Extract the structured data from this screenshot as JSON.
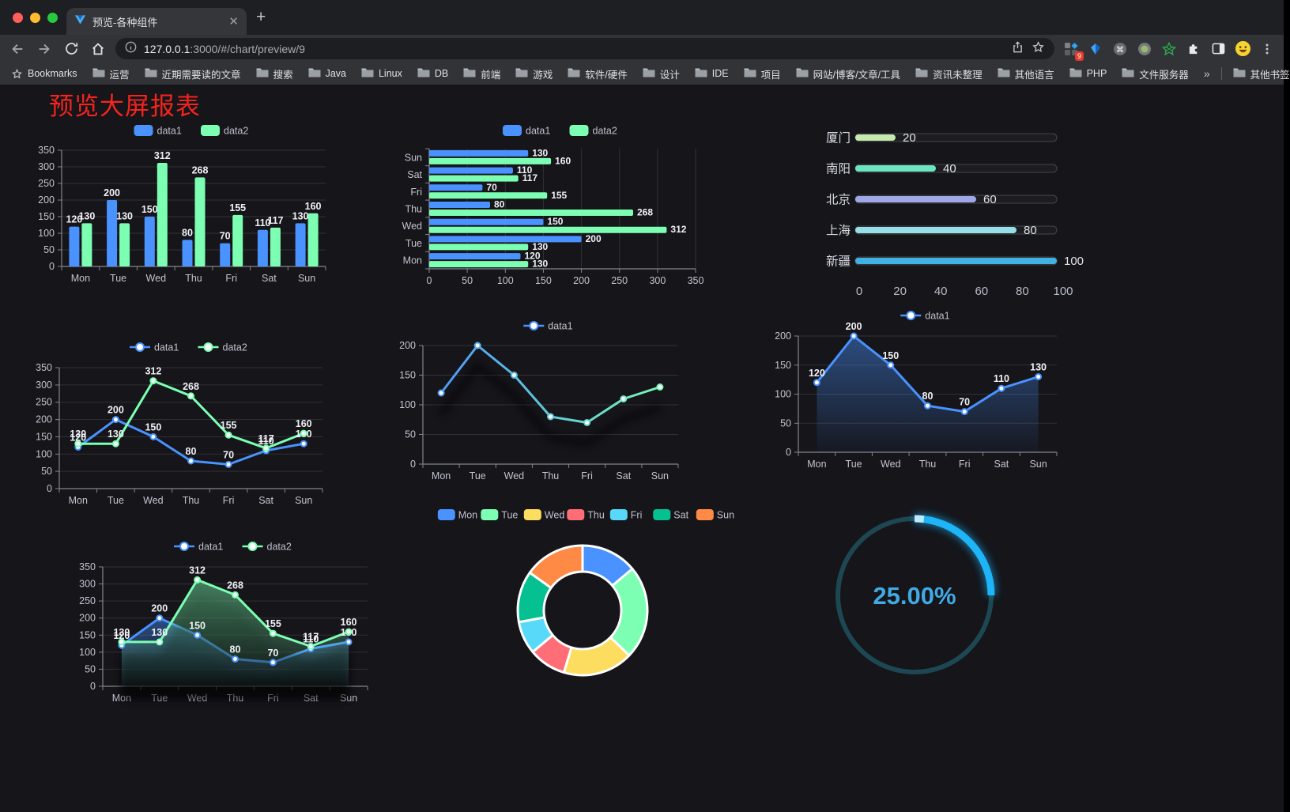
{
  "browser": {
    "tab": {
      "title": "预览-各种组件",
      "favicon": "vue-logo-icon",
      "close": "✕"
    },
    "new_tab": "+",
    "url": {
      "host": "127.0.0.1",
      "rest": ":3000/#/chart/preview/9"
    },
    "nav_icons": [
      "back-icon",
      "forward-icon",
      "reload-icon",
      "home-icon"
    ],
    "url_icons": [
      "site-info-icon",
      "share-icon",
      "bookmark-star-icon"
    ],
    "extensions": [
      {
        "icon": "apps-grid-icon",
        "badge": "9"
      },
      {
        "icon": "kite-icon"
      },
      {
        "icon": "command-circle-icon"
      },
      {
        "icon": "record-circle-icon"
      },
      {
        "icon": "green-star-icon"
      },
      {
        "icon": "puzzle-icon"
      },
      {
        "icon": "sidebar-icon"
      },
      {
        "icon": "emoji-avatar-icon"
      },
      {
        "icon": "menu-kebab-icon"
      }
    ],
    "bookmarks_label": "Bookmarks",
    "bookmarks": [
      "运营",
      "近期需要读的文章",
      "搜索",
      "Java",
      "Linux",
      "DB",
      "前端",
      "游戏",
      "软件/硬件",
      "设计",
      "IDE",
      "项目",
      "网站/博客/文章/工具",
      "资讯未整理",
      "其他语言",
      "PHP",
      "文件服务器"
    ],
    "bookmarks_overflow": "»",
    "other_bookmarks": "其他书签"
  },
  "page": {
    "title": "预览大屏报表",
    "title_color": "#f5241d",
    "background": "#15151a"
  },
  "chart_data": [
    {
      "id": "c1",
      "type": "bar",
      "categories": [
        "Mon",
        "Tue",
        "Wed",
        "Thu",
        "Fri",
        "Sat",
        "Sun"
      ],
      "series": [
        {
          "name": "data1",
          "color": "#4992ff",
          "values": [
            120,
            200,
            150,
            80,
            70,
            110,
            130
          ]
        },
        {
          "name": "data2",
          "color": "#7cffb2",
          "values": [
            130,
            130,
            312,
            268,
            155,
            117,
            160
          ]
        }
      ],
      "ylim": [
        0,
        350
      ],
      "yticks": [
        0,
        50,
        100,
        150,
        200,
        250,
        300,
        350
      ],
      "value_labels": true,
      "legend_position": "top",
      "grid": true
    },
    {
      "id": "c2",
      "type": "bar-horizontal",
      "categories": [
        "Mon",
        "Tue",
        "Wed",
        "Thu",
        "Fri",
        "Sat",
        "Sun"
      ],
      "series": [
        {
          "name": "data1",
          "color": "#4992ff",
          "values": [
            120,
            200,
            150,
            80,
            70,
            110,
            130
          ]
        },
        {
          "name": "data2",
          "color": "#7cffb2",
          "values": [
            130,
            130,
            312,
            268,
            155,
            117,
            160
          ]
        }
      ],
      "xlim": [
        0,
        350
      ],
      "xticks": [
        0,
        50,
        100,
        150,
        200,
        250,
        300,
        350
      ],
      "value_labels": true,
      "legend_position": "top",
      "grid": true,
      "category_order": "Mon at bottom, Sun at top"
    },
    {
      "id": "c3",
      "type": "progress",
      "max": 100,
      "xticks": [
        0,
        20,
        40,
        60,
        80,
        100
      ],
      "items": [
        {
          "label": "厦门",
          "value": 20,
          "color": "#c4ebad"
        },
        {
          "label": "南阳",
          "value": 40,
          "color": "#6be6c1"
        },
        {
          "label": "北京",
          "value": 60,
          "color": "#a0a7e6"
        },
        {
          "label": "上海",
          "value": 80,
          "color": "#96dee8"
        },
        {
          "label": "新疆",
          "value": 100,
          "color": "#3fb1e3"
        }
      ]
    },
    {
      "id": "c4",
      "type": "line",
      "categories": [
        "Mon",
        "Tue",
        "Wed",
        "Thu",
        "Fri",
        "Sat",
        "Sun"
      ],
      "series": [
        {
          "name": "data1",
          "color": "#4992ff",
          "values": [
            120,
            200,
            150,
            80,
            70,
            110,
            130
          ]
        },
        {
          "name": "data2",
          "color": "#7cffb2",
          "values": [
            130,
            130,
            312,
            268,
            155,
            117,
            160
          ]
        }
      ],
      "ylim": [
        0,
        350
      ],
      "yticks": [
        0,
        50,
        100,
        150,
        200,
        250,
        300,
        350
      ],
      "value_labels": true,
      "markers": true,
      "legend_position": "top",
      "grid": true
    },
    {
      "id": "c5",
      "type": "line",
      "categories": [
        "Mon",
        "Tue",
        "Wed",
        "Thu",
        "Fri",
        "Sat",
        "Sun"
      ],
      "series": [
        {
          "name": "data1",
          "gradient": [
            "#4992ff",
            "#7cffb2"
          ],
          "values": [
            120,
            200,
            150,
            80,
            70,
            110,
            130
          ]
        }
      ],
      "ylim": [
        0,
        200
      ],
      "yticks": [
        0,
        50,
        100,
        150,
        200
      ],
      "value_labels": false,
      "markers": true,
      "shadow": true,
      "legend_position": "top",
      "grid": true
    },
    {
      "id": "c6",
      "type": "line",
      "categories": [
        "Mon",
        "Tue",
        "Wed",
        "Thu",
        "Fri",
        "Sat",
        "Sun"
      ],
      "series": [
        {
          "name": "data1",
          "color": "#4992ff",
          "values": [
            120,
            200,
            150,
            80,
            70,
            110,
            130
          ],
          "area": true
        }
      ],
      "ylim": [
        0,
        200
      ],
      "yticks": [
        0,
        50,
        100,
        150,
        200
      ],
      "value_labels": true,
      "markers": true,
      "legend_position": "top",
      "grid": true
    },
    {
      "id": "c7",
      "type": "line",
      "categories": [
        "Mon",
        "Tue",
        "Wed",
        "Thu",
        "Fri",
        "Sat",
        "Sun"
      ],
      "series": [
        {
          "name": "data1",
          "color": "#4992ff",
          "values": [
            120,
            200,
            150,
            80,
            70,
            110,
            130
          ],
          "area": true
        },
        {
          "name": "data2",
          "color": "#7cffb2",
          "values": [
            130,
            130,
            312,
            268,
            155,
            117,
            160
          ],
          "area": true
        }
      ],
      "ylim": [
        0,
        350
      ],
      "yticks": [
        0,
        50,
        100,
        150,
        200,
        250,
        300,
        350
      ],
      "value_labels": true,
      "markers": true,
      "shadow": true,
      "legend_position": "top",
      "grid": true
    },
    {
      "id": "c8",
      "type": "pie",
      "donut": true,
      "legend_position": "top",
      "items": [
        {
          "label": "Mon",
          "value": 120,
          "color": "#4992ff"
        },
        {
          "label": "Tue",
          "value": 200,
          "color": "#7cffb2"
        },
        {
          "label": "Wed",
          "value": 150,
          "color": "#fddd60"
        },
        {
          "label": "Thu",
          "value": 80,
          "color": "#ff6e76"
        },
        {
          "label": "Fri",
          "value": 70,
          "color": "#58d9f9"
        },
        {
          "label": "Sat",
          "value": 110,
          "color": "#05c091"
        },
        {
          "label": "Sun",
          "value": 130,
          "color": "#ff8a45"
        }
      ]
    },
    {
      "id": "c9",
      "type": "gauge",
      "value": 25,
      "display": "25.00%",
      "color": "#1db4f8",
      "track_color": "#1d4752",
      "text_color": "#41a9e4"
    }
  ]
}
